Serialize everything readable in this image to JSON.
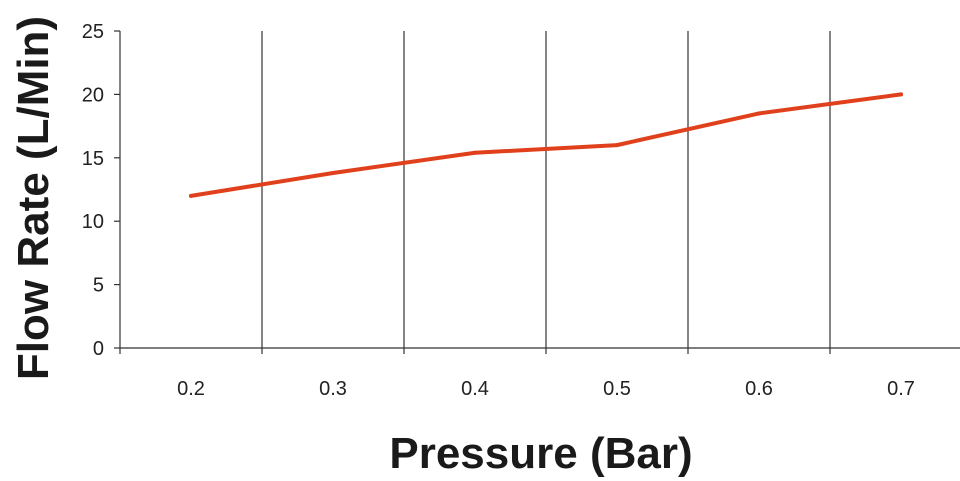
{
  "chart_data": {
    "type": "line",
    "title": "",
    "xlabel": "Pressure (Bar)",
    "ylabel": "Flow Rate (L/Min)",
    "categories": [
      "0.2",
      "0.3",
      "0.4",
      "0.5",
      "0.6",
      "0.7"
    ],
    "x": [
      0.2,
      0.3,
      0.4,
      0.5,
      0.6,
      0.7
    ],
    "series": [
      {
        "values": [
          12,
          13.8,
          15.4,
          16,
          18.5,
          20
        ],
        "color": "#e0401c"
      }
    ],
    "y_ticks": [
      "0",
      "5",
      "10",
      "15",
      "20",
      "25"
    ],
    "ylim": [
      0,
      25
    ],
    "grid": "vertical lines between categories",
    "legend": "none"
  }
}
